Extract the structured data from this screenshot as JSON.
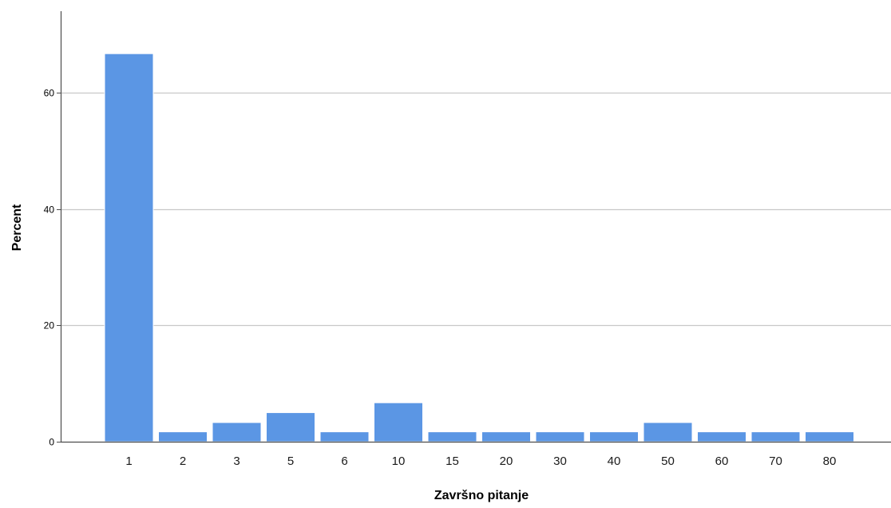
{
  "chart_data": {
    "type": "bar",
    "title": "",
    "xlabel": "Završno pitanje",
    "ylabel": "Percent",
    "categories": [
      "1",
      "2",
      "3",
      "5",
      "6",
      "10",
      "15",
      "20",
      "30",
      "40",
      "50",
      "60",
      "70",
      "80"
    ],
    "values": [
      66.7,
      1.7,
      3.3,
      5.0,
      1.7,
      6.7,
      1.7,
      1.7,
      1.7,
      1.7,
      3.3,
      1.7,
      1.7,
      1.7
    ],
    "ylim": [
      0,
      74
    ],
    "yticks": [
      0,
      20,
      40,
      60
    ],
    "grid": true,
    "bar_color": "#5b96e4",
    "bar_edge_color": "#ffffff",
    "grid_color": "#c8c8c8",
    "axis_color": "#4d4d4d"
  }
}
